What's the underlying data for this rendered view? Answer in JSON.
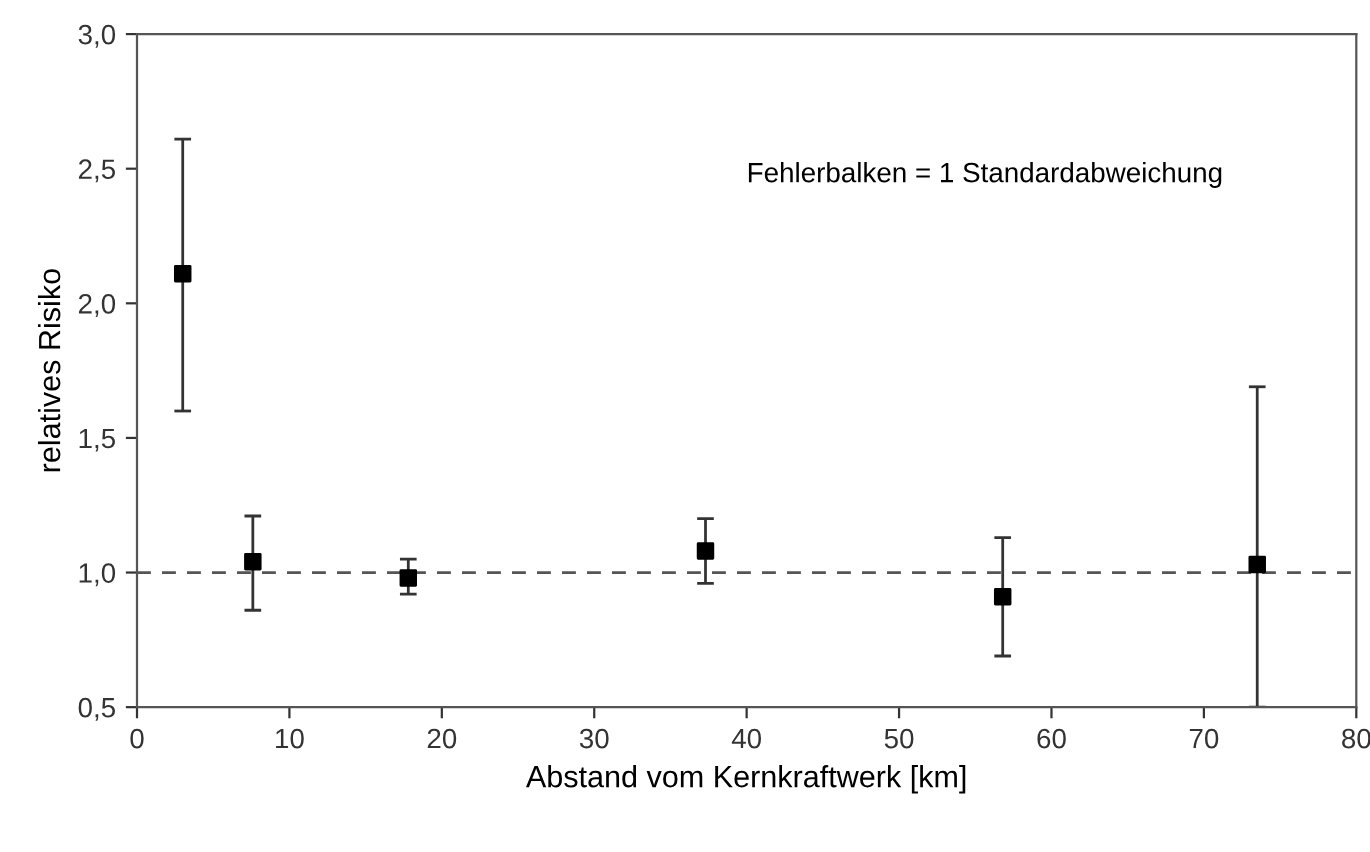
{
  "chart_data": {
    "type": "scatter",
    "xlabel": "Abstand vom Kernkraftwerk [km]",
    "ylabel": "relatives Risiko",
    "x": [
      3,
      7.6,
      17.8,
      37.3,
      56.8,
      73.5
    ],
    "values": [
      2.11,
      1.04,
      0.98,
      1.08,
      0.91,
      1.03
    ],
    "errors": [
      [
        1.6,
        2.61
      ],
      [
        0.86,
        1.21
      ],
      [
        0.92,
        1.05
      ],
      [
        0.96,
        1.2
      ],
      [
        0.69,
        1.13
      ],
      [
        0.5,
        1.69
      ]
    ],
    "color": "#000000",
    "marker": "square",
    "xlim": [
      0,
      80
    ],
    "xticks": [
      0,
      10,
      20,
      30,
      40,
      50,
      60,
      70,
      80
    ],
    "ylim": [
      0.5,
      3.0
    ],
    "yticks": [
      {
        "value": 0.5,
        "label": "0,5"
      },
      {
        "value": 1.0,
        "label": "1,0"
      },
      {
        "value": 1.5,
        "label": "1,5"
      },
      {
        "value": 2.0,
        "label": "2,0"
      },
      {
        "value": 2.5,
        "label": "2,5"
      },
      {
        "value": 3.0,
        "label": "3,0"
      }
    ],
    "ref_lines": [
      {
        "axis": "y",
        "value": 1.0,
        "color": "#555555",
        "line_style": "dashed"
      }
    ],
    "annotations": [
      "Fehlerbalken = 1 Standardabweichung"
    ],
    "grid": false,
    "legend": false
  }
}
